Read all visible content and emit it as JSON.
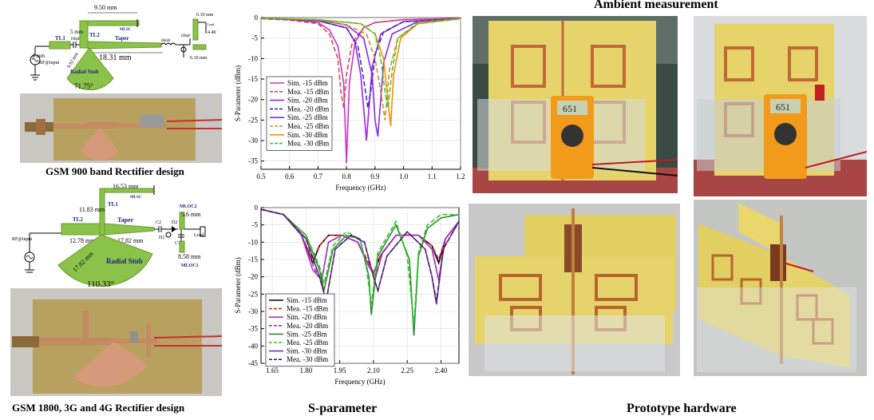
{
  "headings": {
    "ambient": "Ambient measurement",
    "sparam": "S-parameter",
    "prototype": "Prototype hardware",
    "gsm900": "GSM 900 band Rectifier design",
    "gsm1800": "GSM 1800, 3G and 4G Rectifier design"
  },
  "schematic_900": {
    "rf_input": "RF@input",
    "tl1": "TL1",
    "tl2": "TL2",
    "cap": "100pF",
    "ind": "68nH",
    "cap2": "100pF",
    "load": "Load",
    "mlsc": "MLSC",
    "taper": "Taper",
    "dim_950": "9.50 mm",
    "dim_5": "5 mm",
    "dim_4": "4 mm",
    "dim_1831": "18.31 mm",
    "dim_992": "9.92 mm",
    "dim_610a": "6.10 mm",
    "dim_610b": "6.10 mm",
    "dim_440": "4.40",
    "stub": "Radial Stub",
    "angle": "71.75°"
  },
  "schematic_1800": {
    "rf_input": "RF@input",
    "tl1": "TL1",
    "tl2": "TL2",
    "taper": "Taper",
    "mlsc": "MLSC",
    "c1": "C1",
    "c2": "C2",
    "d1": "D1",
    "d2": "D2",
    "load": "Load",
    "mloc1": "MLOC1",
    "mloc2": "MLOC2",
    "dim_1653": "16.53 mm",
    "dim_1183": "11.83 mm",
    "dim_1278": "12.78 mm",
    "dim_1782a": "17.82 mm",
    "dim_1782b": "17.82 mm",
    "dim_56": "5.6 mm",
    "dim_858": "8.58 mm",
    "stub": "Radial Stub",
    "angle": "110.33°"
  },
  "multimeter": {
    "reading1": "651",
    "reading2": "651"
  },
  "chart_data": [
    {
      "type": "line",
      "xlabel": "Frequency (GHz)",
      "ylabel": "S-Parameter (dBm)",
      "xlim": [
        0.5,
        1.2
      ],
      "ylim": [
        -37,
        0
      ],
      "xticks": [
        0.5,
        0.6,
        0.7,
        0.8,
        0.9,
        1.0,
        1.1,
        1.2
      ],
      "xtick_labels": [
        "0.5",
        "0.6",
        "0.7",
        "0.8",
        "0.9",
        "1.0",
        "1.1",
        "1.2"
      ],
      "yticks": [
        0,
        -5,
        -10,
        -15,
        -20,
        -25,
        -30,
        -35
      ],
      "ytick_labels": [
        "0",
        "-5",
        "-10",
        "-15",
        "-20",
        "-25",
        "-30",
        "-35"
      ],
      "series": [
        {
          "name": "Sim. -15 dBm",
          "color": "#cc33cc",
          "dash": "",
          "x": [
            0.5,
            0.6,
            0.7,
            0.74,
            0.77,
            0.79,
            0.8,
            0.81,
            0.83,
            0.86,
            0.9,
            1.0,
            1.2
          ],
          "y": [
            -0.2,
            -0.5,
            -1.2,
            -3,
            -7,
            -16,
            -35.5,
            -16,
            -6,
            -2.5,
            -1.2,
            -0.5,
            -0.2
          ]
        },
        {
          "name": "Mea. -15 dBm",
          "color": "#d05050",
          "dash": "6,3",
          "x": [
            0.5,
            0.6,
            0.7,
            0.74,
            0.77,
            0.78,
            0.79,
            0.8,
            0.82,
            0.86,
            0.9,
            1.0,
            1.2
          ],
          "y": [
            -0.3,
            -0.6,
            -1.5,
            -4,
            -10,
            -18,
            -22,
            -14,
            -6,
            -2.5,
            -1.2,
            -0.5,
            -0.2
          ]
        },
        {
          "name": "Sim. -20 dBm",
          "color": "#a020f0",
          "dash": "",
          "x": [
            0.5,
            0.7,
            0.8,
            0.83,
            0.85,
            0.86,
            0.87,
            0.89,
            0.92,
            1.0,
            1.2
          ],
          "y": [
            -0.2,
            -0.8,
            -2.5,
            -6,
            -14,
            -22,
            -30,
            -12,
            -4,
            -1,
            -0.3
          ]
        },
        {
          "name": "Mea. -20 dBm",
          "color": "#3030c0",
          "dash": "6,3",
          "x": [
            0.5,
            0.7,
            0.8,
            0.84,
            0.86,
            0.875,
            0.885,
            0.9,
            0.93,
            1.0,
            1.2
          ],
          "y": [
            -0.2,
            -0.8,
            -2.5,
            -7,
            -15,
            -22,
            -18,
            -9,
            -3.5,
            -1,
            -0.3
          ]
        },
        {
          "name": "Sim. -25 dBm",
          "color": "#8a2be2",
          "dash": "",
          "x": [
            0.5,
            0.7,
            0.8,
            0.86,
            0.89,
            0.9,
            0.91,
            0.93,
            0.96,
            1.05,
            1.2
          ],
          "y": [
            -0.2,
            -0.6,
            -1.8,
            -5,
            -14,
            -25,
            -29,
            -11,
            -4,
            -1,
            -0.3
          ]
        },
        {
          "name": "Mea. -25 dBm",
          "color": "#c89020",
          "dash": "6,3",
          "x": [
            0.5,
            0.7,
            0.8,
            0.87,
            0.9,
            0.92,
            0.935,
            0.95,
            0.98,
            1.05,
            1.2
          ],
          "y": [
            -0.2,
            -0.6,
            -1.8,
            -4,
            -10,
            -18,
            -25,
            -13,
            -5,
            -1.2,
            -0.3
          ]
        },
        {
          "name": "Sim. -30 dBm",
          "color": "#ff8c00",
          "dash": "",
          "x": [
            0.5,
            0.7,
            0.85,
            0.9,
            0.93,
            0.945,
            0.955,
            0.965,
            0.99,
            1.05,
            1.2
          ],
          "y": [
            -0.2,
            -0.5,
            -1.5,
            -4,
            -10,
            -20,
            -26.5,
            -14,
            -5,
            -1.5,
            -0.3
          ]
        },
        {
          "name": "Mea. -30 dBm",
          "color": "#33cc33",
          "dash": "6,3",
          "x": [
            0.5,
            0.7,
            0.85,
            0.9,
            0.92,
            0.935,
            0.945,
            0.96,
            0.98,
            1.05,
            1.2
          ],
          "y": [
            -0.2,
            -0.5,
            -1.5,
            -4,
            -10,
            -18,
            -22,
            -13,
            -5,
            -1.5,
            -0.3
          ]
        }
      ]
    },
    {
      "type": "line",
      "xlabel": "Frequency (GHz)",
      "ylabel": "S-Parameter (dBm)",
      "xlim": [
        1.6,
        2.48
      ],
      "ylim": [
        -45,
        0
      ],
      "xticks": [
        1.65,
        1.8,
        1.95,
        2.1,
        2.25,
        2.4
      ],
      "xtick_labels": [
        "1.65",
        "1.80",
        "1.95",
        "2.10",
        "2.25",
        "2.40"
      ],
      "yticks": [
        0,
        -5,
        -10,
        -15,
        -20,
        -25,
        -30,
        -35,
        -40,
        -45
      ],
      "ytick_labels": [
        "0",
        "-5",
        "-10",
        "-15",
        "-20",
        "-25",
        "-30",
        "-35",
        "-40",
        "-45"
      ],
      "series": [
        {
          "name": "Sim. -15 dBm",
          "color": "#000000",
          "dash": "",
          "x": [
            1.6,
            1.7,
            1.78,
            1.83,
            1.86,
            1.9,
            1.96,
            2.03,
            2.08,
            2.1,
            2.13,
            2.2,
            2.3,
            2.36,
            2.39,
            2.42,
            2.48
          ],
          "y": [
            -0.5,
            -2,
            -8,
            -16,
            -11,
            -8,
            -8,
            -10,
            -17,
            -19,
            -14,
            -8,
            -8,
            -11,
            -16,
            -9,
            -4
          ]
        },
        {
          "name": "Mea. -15 dBm",
          "color": "#cc2222",
          "dash": "6,3",
          "x": [
            1.6,
            1.7,
            1.78,
            1.83,
            1.86,
            1.9,
            1.96,
            2.03,
            2.08,
            2.1,
            2.13,
            2.2,
            2.3,
            2.36,
            2.39,
            2.42,
            2.48
          ],
          "y": [
            -0.5,
            -2,
            -8,
            -15,
            -11,
            -8,
            -8,
            -10,
            -16,
            -19,
            -14,
            -8,
            -8,
            -11,
            -15,
            -9,
            -4
          ]
        },
        {
          "name": "Sim. -20 dBm",
          "color": "#bb33bb",
          "dash": "",
          "x": [
            1.6,
            1.7,
            1.78,
            1.83,
            1.87,
            1.9,
            1.96,
            2.03,
            2.08,
            2.11,
            2.14,
            2.2,
            2.3,
            2.36,
            2.39,
            2.42,
            2.48
          ],
          "y": [
            -0.5,
            -2,
            -8,
            -18,
            -21,
            -10,
            -8,
            -10,
            -17,
            -20,
            -13,
            -8,
            -8,
            -12,
            -21,
            -9,
            -4
          ]
        },
        {
          "name": "Mea. -20 dBm",
          "color": "#9933cc",
          "dash": "6,3",
          "x": [
            1.6,
            1.7,
            1.78,
            1.84,
            1.87,
            1.9,
            1.96,
            2.03,
            2.08,
            2.11,
            2.14,
            2.2,
            2.3,
            2.36,
            2.39,
            2.42,
            2.48
          ],
          "y": [
            -0.5,
            -2,
            -8,
            -18,
            -21,
            -10,
            -8,
            -10,
            -17,
            -20,
            -13,
            -8,
            -8,
            -12,
            -21,
            -9,
            -4
          ]
        },
        {
          "name": "Sim. -25 dBm",
          "color": "#338833",
          "dash": "",
          "x": [
            1.6,
            1.7,
            1.8,
            1.86,
            1.88,
            1.92,
            1.98,
            2.04,
            2.08,
            2.09,
            2.12,
            2.2,
            2.26,
            2.28,
            2.3,
            2.34,
            2.4,
            2.48
          ],
          "y": [
            -0.5,
            -2,
            -8,
            -18,
            -24,
            -12,
            -8,
            -9,
            -20,
            -31,
            -14,
            -5,
            -15,
            -37,
            -14,
            -6,
            -3,
            -2
          ]
        },
        {
          "name": "Mea. -25 dBm",
          "color": "#22cc22",
          "dash": "6,3",
          "x": [
            1.6,
            1.7,
            1.8,
            1.86,
            1.88,
            1.92,
            1.98,
            2.04,
            2.07,
            2.09,
            2.12,
            2.2,
            2.25,
            2.28,
            2.3,
            2.34,
            2.4,
            2.48
          ],
          "y": [
            -0.5,
            -2,
            -8,
            -17,
            -22,
            -11,
            -7,
            -9,
            -18,
            -28,
            -13,
            -4,
            -14,
            -34,
            -13,
            -5,
            -2,
            -2
          ]
        },
        {
          "name": "Sim. -30 dBm",
          "color": "#6633cc",
          "dash": "",
          "x": [
            1.6,
            1.7,
            1.8,
            1.86,
            1.89,
            1.93,
            2.0,
            2.06,
            2.1,
            2.12,
            2.16,
            2.25,
            2.33,
            2.36,
            2.38,
            2.41,
            2.48
          ],
          "y": [
            -0.5,
            -2,
            -9,
            -20,
            -27,
            -12,
            -8,
            -10,
            -20,
            -24,
            -14,
            -7,
            -12,
            -20,
            -28,
            -12,
            -4
          ]
        },
        {
          "name": "Mea. -30 dBm",
          "color": "#552244",
          "dash": "6,3",
          "x": [
            1.6,
            1.7,
            1.8,
            1.86,
            1.89,
            1.93,
            2.0,
            2.06,
            2.1,
            2.12,
            2.16,
            2.25,
            2.33,
            2.36,
            2.38,
            2.41,
            2.48
          ],
          "y": [
            -0.5,
            -2,
            -9,
            -20,
            -27,
            -12,
            -8,
            -10,
            -20,
            -24,
            -14,
            -7,
            -12,
            -20,
            -27,
            -12,
            -4
          ]
        }
      ]
    }
  ]
}
